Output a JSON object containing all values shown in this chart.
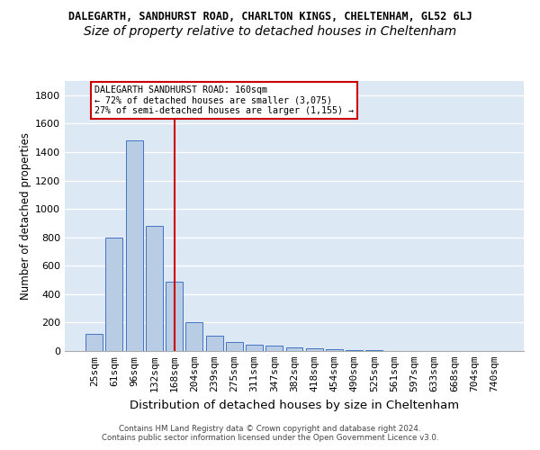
{
  "title1": "DALEGARTH, SANDHURST ROAD, CHARLTON KINGS, CHELTENHAM, GL52 6LJ",
  "title2": "Size of property relative to detached houses in Cheltenham",
  "xlabel": "Distribution of detached houses by size in Cheltenham",
  "ylabel": "Number of detached properties",
  "footer1": "Contains HM Land Registry data © Crown copyright and database right 2024.",
  "footer2": "Contains public sector information licensed under the Open Government Licence v3.0.",
  "categories": [
    "25sqm",
    "61sqm",
    "96sqm",
    "132sqm",
    "168sqm",
    "204sqm",
    "239sqm",
    "275sqm",
    "311sqm",
    "347sqm",
    "382sqm",
    "418sqm",
    "454sqm",
    "490sqm",
    "525sqm",
    "561sqm",
    "597sqm",
    "633sqm",
    "668sqm",
    "704sqm",
    "740sqm"
  ],
  "values": [
    120,
    800,
    1480,
    880,
    490,
    205,
    105,
    65,
    45,
    35,
    25,
    20,
    10,
    5,
    5,
    3,
    3,
    2,
    1,
    1,
    1
  ],
  "bar_color": "#b8cce4",
  "bar_edge_color": "#4472c4",
  "vline_x_index": 4,
  "vline_color": "#cc0000",
  "annotation_text": "DALEGARTH SANDHURST ROAD: 160sqm\n← 72% of detached houses are smaller (3,075)\n27% of semi-detached houses are larger (1,155) →",
  "annotation_box_color": "#cc0000",
  "ylim": [
    0,
    1900
  ],
  "yticks": [
    0,
    200,
    400,
    600,
    800,
    1000,
    1200,
    1400,
    1600,
    1800
  ],
  "bg_color": "#dde8f5",
  "title1_fontsize": 8.5,
  "title2_fontsize": 10,
  "axis_fontsize": 8,
  "xlabel_fontsize": 9.5,
  "ylabel_fontsize": 8.5
}
